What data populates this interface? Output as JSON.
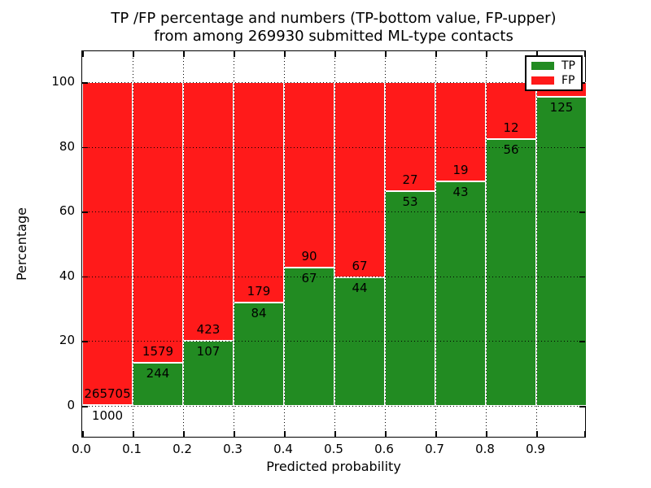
{
  "chart_data": {
    "type": "bar",
    "subtype": "stacked-percentage",
    "title_line1": "TP /FP percentage and numbers (TP-bottom value, FP-upper)",
    "title_line2": "from among 269930 submitted ML-type contacts",
    "xlabel": "Predicted probability",
    "ylabel": "Percentage",
    "x_tick_labels": [
      "0.0",
      "0.1",
      "0.2",
      "0.3",
      "0.4",
      "0.5",
      "0.6",
      "0.7",
      "0.8",
      "0.9"
    ],
    "y_tick_labels": [
      "0",
      "20",
      "40",
      "60",
      "80",
      "100"
    ],
    "y_ticks": [
      0,
      20,
      40,
      60,
      80,
      100
    ],
    "xlim": [
      0.0,
      1.0
    ],
    "ylim": [
      -10,
      110
    ],
    "grid": "dotted-black-both-axes",
    "legend_position": "upper-right",
    "total_contacts": 269930,
    "colors": {
      "tp": "#228B22",
      "fp": "#FF1A1A",
      "bar_edge": "#FFFFFF",
      "text": "#000000"
    },
    "legend": {
      "items": [
        {
          "label": "TP",
          "color": "#228B22"
        },
        {
          "label": "FP",
          "color": "#FF1A1A"
        }
      ]
    },
    "bars": [
      {
        "x_start": 0.0,
        "x_end": 0.1,
        "tp": 1000,
        "fp": 265705,
        "tp_pct": 0.37
      },
      {
        "x_start": 0.1,
        "x_end": 0.2,
        "tp": 244,
        "fp": 1579,
        "tp_pct": 13.38
      },
      {
        "x_start": 0.2,
        "x_end": 0.3,
        "tp": 107,
        "fp": 423,
        "tp_pct": 20.19
      },
      {
        "x_start": 0.3,
        "x_end": 0.4,
        "tp": 84,
        "fp": 179,
        "tp_pct": 31.94
      },
      {
        "x_start": 0.4,
        "x_end": 0.5,
        "tp": 67,
        "fp": 90,
        "tp_pct": 42.68
      },
      {
        "x_start": 0.5,
        "x_end": 0.6,
        "tp": 44,
        "fp": 67,
        "tp_pct": 39.64
      },
      {
        "x_start": 0.6,
        "x_end": 0.7,
        "tp": 53,
        "fp": 27,
        "tp_pct": 66.25
      },
      {
        "x_start": 0.7,
        "x_end": 0.8,
        "tp": 43,
        "fp": 19,
        "tp_pct": 69.35
      },
      {
        "x_start": 0.8,
        "x_end": 0.9,
        "tp": 56,
        "fp": 12,
        "tp_pct": 82.35
      },
      {
        "x_start": 0.9,
        "x_end": 1.0,
        "tp": 125,
        "fp": null,
        "tp_pct": 95.4
      }
    ]
  }
}
